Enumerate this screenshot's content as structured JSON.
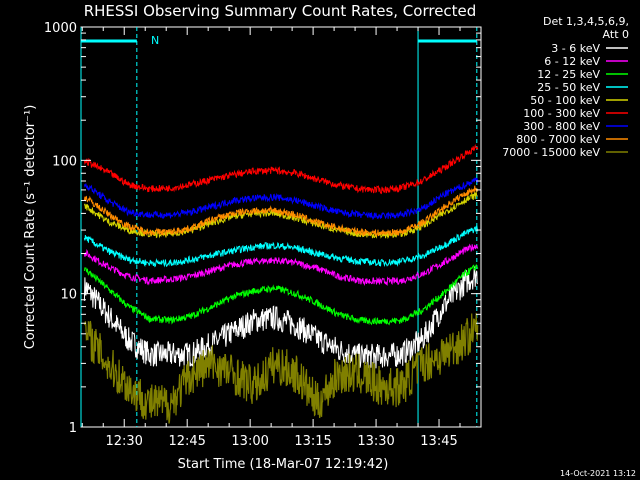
{
  "chart_data": {
    "type": "line",
    "title": "RHESSI Observing Summary Count Rates, Corrected",
    "xlabel": "Start Time (18-Mar-07 12:19:42)",
    "ylabel": "Corrected Count Rate (s⁻¹ detector⁻¹)",
    "y_scale": "log",
    "ylim": [
      1,
      1000
    ],
    "xlim": [
      "12:19:42",
      "13:55"
    ],
    "y_tick_labels": [
      "1",
      "10",
      "100",
      "1000"
    ],
    "x_tick_labels": [
      "12:30",
      "12:45",
      "13:00",
      "13:15",
      "13:30",
      "13:45"
    ],
    "legend_header": [
      "Det 1,3,4,5,6,9,",
      "Att 0"
    ],
    "legend_placement": "right",
    "night_flag_label": "N",
    "footer_date": "14-Oct-2021 13:12",
    "grid": false,
    "series": [
      {
        "name": "3 - 6 keV",
        "color": "#ffffff",
        "x": [
          "12:21",
          "12:26",
          "12:31",
          "12:36",
          "12:41",
          "12:46",
          "12:51",
          "12:56",
          "13:01",
          "13:06",
          "13:11",
          "13:16",
          "13:21",
          "13:26",
          "13:31",
          "13:36",
          "13:41",
          "13:46",
          "13:51",
          "13:54"
        ],
        "values": [
          11,
          7,
          4.5,
          3.5,
          3.5,
          3.5,
          4.2,
          5.2,
          6.3,
          6.6,
          5.8,
          4.6,
          3.8,
          3.4,
          3.4,
          3.5,
          4.5,
          8,
          12,
          14
        ]
      },
      {
        "name": "6 - 12 keV",
        "color": "#ff00ff",
        "x": [
          "12:21",
          "12:26",
          "12:31",
          "12:36",
          "12:41",
          "12:46",
          "12:51",
          "12:56",
          "13:01",
          "13:06",
          "13:11",
          "13:16",
          "13:21",
          "13:26",
          "13:31",
          "13:36",
          "13:41",
          "13:46",
          "13:51",
          "13:54"
        ],
        "values": [
          20,
          16,
          13.5,
          12.5,
          12.8,
          13.5,
          15,
          16.5,
          17.5,
          17.8,
          17,
          15.5,
          13.5,
          12.5,
          12.3,
          12.5,
          14,
          17,
          21,
          23
        ]
      },
      {
        "name": "12 - 25 keV",
        "color": "#00ff00",
        "x": [
          "12:21",
          "12:26",
          "12:31",
          "12:36",
          "12:41",
          "12:46",
          "12:51",
          "12:56",
          "13:01",
          "13:06",
          "13:11",
          "13:16",
          "13:21",
          "13:26",
          "13:31",
          "13:36",
          "13:41",
          "13:46",
          "13:51",
          "13:54"
        ],
        "values": [
          15,
          11,
          8,
          6.5,
          6.3,
          6.8,
          8,
          9.5,
          10.5,
          11,
          10,
          8.5,
          7,
          6.3,
          6.2,
          6.3,
          7.5,
          10,
          14,
          16
        ]
      },
      {
        "name": "25 - 50 keV",
        "color": "#00ffff",
        "x": [
          "12:21",
          "12:26",
          "12:31",
          "12:36",
          "12:41",
          "12:46",
          "12:51",
          "12:56",
          "13:01",
          "13:06",
          "13:11",
          "13:16",
          "13:21",
          "13:26",
          "13:31",
          "13:36",
          "13:41",
          "13:46",
          "13:51",
          "13:54"
        ],
        "values": [
          26,
          21,
          18,
          17,
          17,
          18,
          19.5,
          21,
          22.5,
          23,
          22,
          20,
          18.5,
          17.5,
          17,
          17.5,
          19,
          23,
          28,
          31
        ]
      },
      {
        "name": "50 - 100 keV",
        "color": "#d4d400",
        "x": [
          "12:21",
          "12:26",
          "12:31",
          "12:36",
          "12:41",
          "12:46",
          "12:51",
          "12:56",
          "13:01",
          "13:06",
          "13:11",
          "13:16",
          "13:21",
          "13:26",
          "13:31",
          "13:36",
          "13:41",
          "13:46",
          "13:51",
          "13:54"
        ],
        "values": [
          45,
          35,
          30,
          28,
          28,
          30,
          34,
          38,
          40,
          40,
          37,
          33,
          30,
          28,
          27.5,
          28,
          32,
          40,
          50,
          55
        ]
      },
      {
        "name": "100 - 300 keV",
        "color": "#ff0000",
        "x": [
          "12:21",
          "12:26",
          "12:31",
          "12:36",
          "12:41",
          "12:46",
          "12:51",
          "12:56",
          "13:01",
          "13:06",
          "13:11",
          "13:16",
          "13:21",
          "13:26",
          "13:31",
          "13:36",
          "13:41",
          "13:46",
          "13:51",
          "13:54"
        ],
        "values": [
          98,
          82,
          66,
          61,
          62,
          66,
          72,
          78,
          83,
          84,
          80,
          72,
          65,
          61,
          60,
          62,
          70,
          87,
          110,
          125
        ]
      },
      {
        "name": "300 - 800 keV",
        "color": "#0000ff",
        "x": [
          "12:21",
          "12:26",
          "12:31",
          "12:36",
          "12:41",
          "12:46",
          "12:51",
          "12:56",
          "13:01",
          "13:06",
          "13:11",
          "13:16",
          "13:21",
          "13:26",
          "13:31",
          "13:36",
          "13:41",
          "13:46",
          "13:51",
          "13:54"
        ],
        "values": [
          65,
          50,
          41,
          39,
          39,
          41,
          45,
          50,
          52,
          53,
          50,
          45,
          41,
          39,
          38,
          39,
          43,
          55,
          65,
          72
        ]
      },
      {
        "name": "800 - 7000 keV",
        "color": "#ff8c00",
        "x": [
          "12:21",
          "12:26",
          "12:31",
          "12:36",
          "12:41",
          "12:46",
          "12:51",
          "12:56",
          "13:01",
          "13:06",
          "13:11",
          "13:16",
          "13:21",
          "13:26",
          "13:31",
          "13:36",
          "13:41",
          "13:46",
          "13:51",
          "13:54"
        ],
        "values": [
          52,
          40,
          32,
          29,
          29,
          31,
          36,
          40,
          42,
          42,
          39,
          34,
          31,
          29,
          28.5,
          29,
          34,
          44,
          56,
          62
        ]
      },
      {
        "name": "7000 - 15000 keV",
        "color": "#808000",
        "x": [
          "12:21",
          "12:26",
          "12:31",
          "12:36",
          "12:41",
          "12:46",
          "12:51",
          "12:56",
          "13:01",
          "13:06",
          "13:11",
          "13:16",
          "13:21",
          "13:26",
          "13:31",
          "13:36",
          "13:41",
          "13:46",
          "13:51",
          "13:54"
        ],
        "values": [
          5,
          3,
          2,
          1.5,
          1.5,
          2.5,
          3,
          2.5,
          2,
          3,
          2.5,
          1.5,
          2.5,
          2.5,
          2,
          2,
          3,
          3.5,
          4.5,
          5.5
        ]
      }
    ],
    "night_intervals": [
      [
        "12:19:42",
        "12:33"
      ],
      [
        "13:40",
        "13:54"
      ]
    ]
  }
}
